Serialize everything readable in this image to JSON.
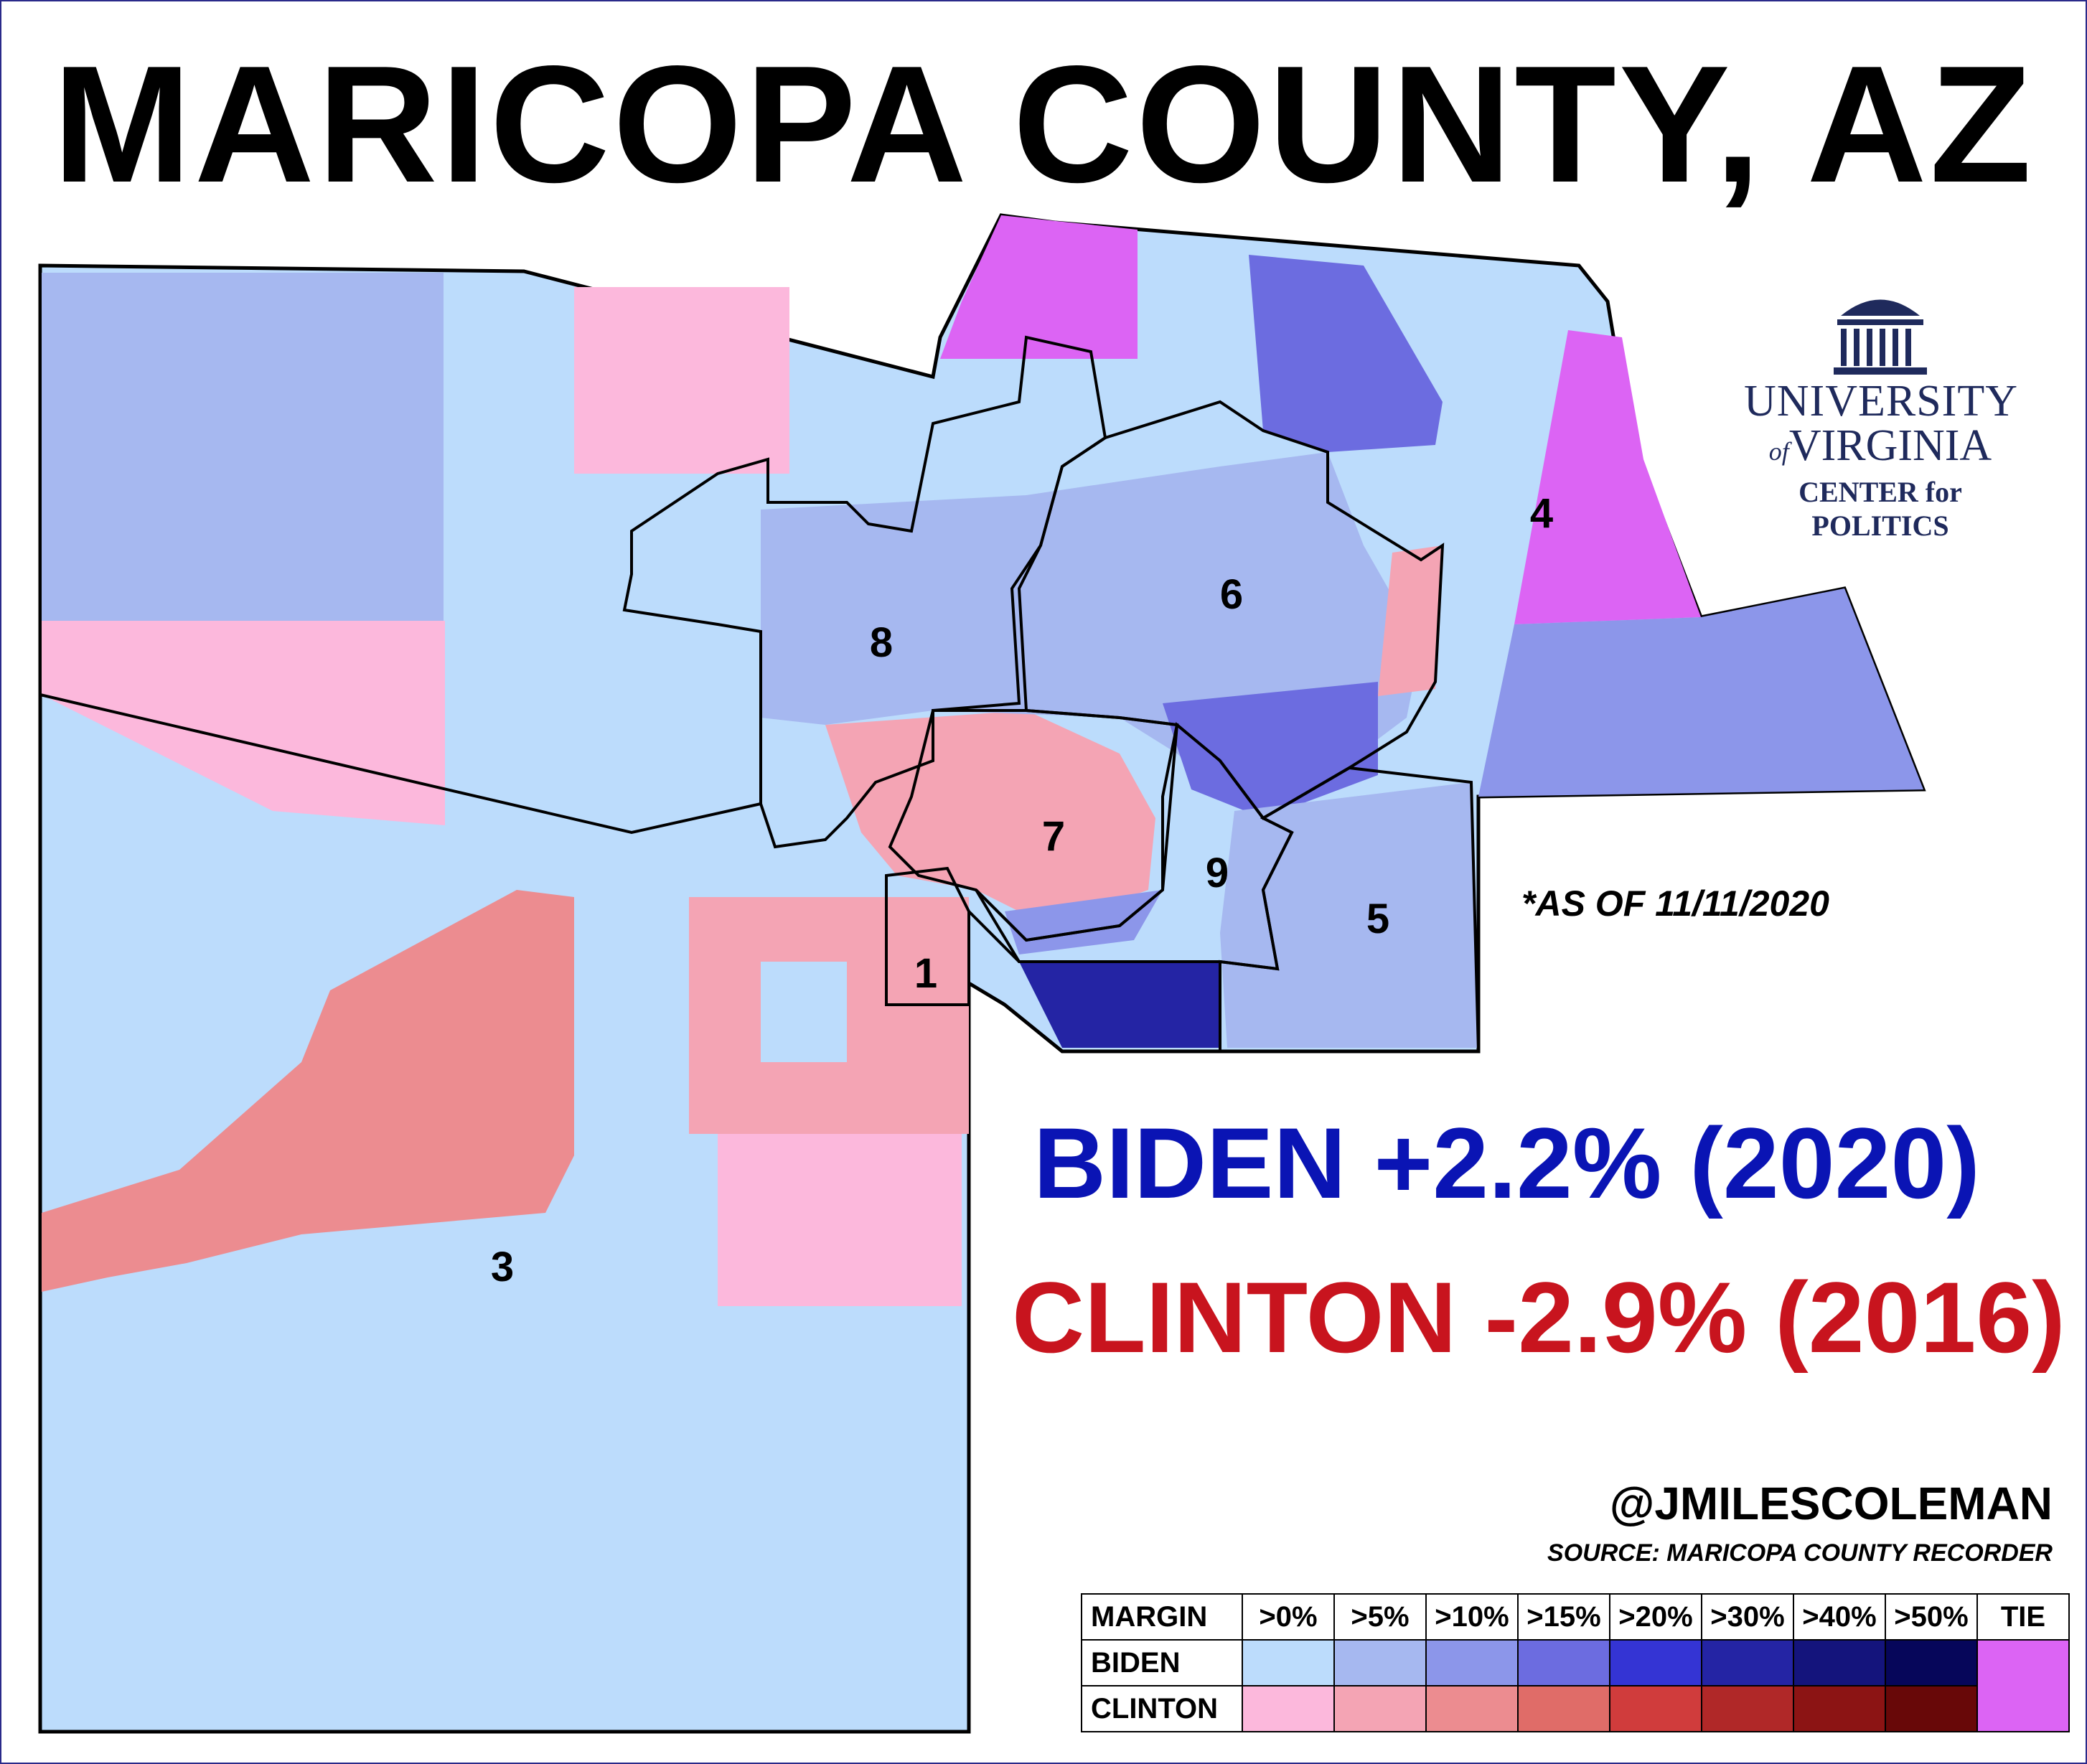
{
  "title": "MARICOPA COUNTY, AZ",
  "as_of": "*AS OF 11/11/2020",
  "headline_2020": "BIDEN +2.2% (2020)",
  "headline_2016": "CLINTON -2.9% (2016)",
  "handle": "@JMILESCOLEMAN",
  "source": "SOURCE: MARICOPA COUNTY RECORDER",
  "logo": {
    "line1": "UNIVERSITY",
    "of": "of",
    "line2": "VIRGINIA",
    "line3": "CENTER for POLITICS"
  },
  "districts": [
    "1",
    "3",
    "4",
    "5",
    "6",
    "7",
    "8",
    "9"
  ],
  "legend": {
    "header": [
      "MARGIN",
      ">0%",
      ">5%",
      ">10%",
      ">15%",
      ">20%",
      ">30%",
      ">40%",
      ">50%",
      "TIE"
    ],
    "rows": [
      {
        "label": "BIDEN",
        "colors": [
          "#bcdcfc",
          "#a6b8f0",
          "#8c96ea",
          "#6c6ce0",
          "#3434d4",
          "#2424a4",
          "#14147c",
          "#06065a"
        ]
      },
      {
        "label": "CLINTON",
        "colors": [
          "#fcb8dc",
          "#f4a4b4",
          "#ec8c90",
          "#e06c68",
          "#d03c3c",
          "#b02828",
          "#8c1414",
          "#680808"
        ]
      }
    ],
    "tie_color": "#dc64f4"
  },
  "colors": {
    "biden_text": "#0a14b4",
    "clinton_text": "#c8141e",
    "logo": "#1f2a5c"
  }
}
